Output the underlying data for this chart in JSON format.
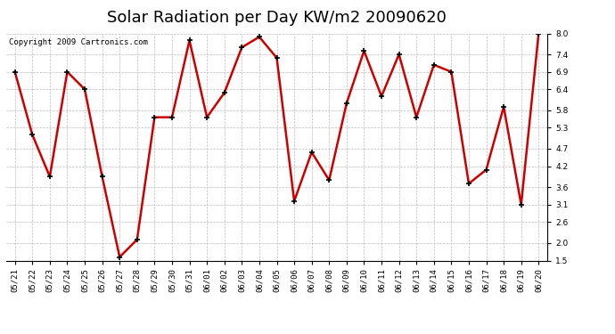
{
  "title": "Solar Radiation per Day KW/m2 20090620",
  "copyright_text": "Copyright 2009 Cartronics.com",
  "dates": [
    "05/21",
    "05/22",
    "05/23",
    "05/24",
    "05/25",
    "05/26",
    "05/27",
    "05/28",
    "05/29",
    "05/30",
    "05/31",
    "06/01",
    "06/02",
    "06/03",
    "06/04",
    "06/05",
    "06/06",
    "06/07",
    "06/08",
    "06/09",
    "06/10",
    "06/11",
    "06/12",
    "06/13",
    "06/14",
    "06/15",
    "06/16",
    "06/17",
    "06/18",
    "06/19",
    "06/20"
  ],
  "values": [
    6.9,
    5.1,
    3.9,
    6.9,
    6.4,
    3.9,
    1.6,
    2.1,
    5.6,
    5.6,
    7.8,
    5.6,
    6.3,
    7.6,
    7.9,
    7.3,
    3.2,
    4.6,
    3.8,
    6.0,
    7.5,
    6.2,
    7.4,
    5.6,
    7.1,
    6.9,
    3.7,
    4.1,
    5.9,
    3.1,
    8.0
  ],
  "line_color": "#cc0000",
  "marker": "+",
  "marker_size": 5,
  "marker_color": "#000000",
  "bg_color": "#ffffff",
  "plot_bg_color": "#ffffff",
  "grid_color": "#bbbbbb",
  "ylim": [
    1.5,
    8.0
  ],
  "yticks": [
    1.5,
    2.0,
    2.6,
    3.1,
    3.6,
    4.2,
    4.7,
    5.3,
    5.8,
    6.4,
    6.9,
    7.4,
    8.0
  ],
  "title_fontsize": 13,
  "copyright_fontsize": 6.5,
  "tick_fontsize": 6.5,
  "line_width": 1.8
}
